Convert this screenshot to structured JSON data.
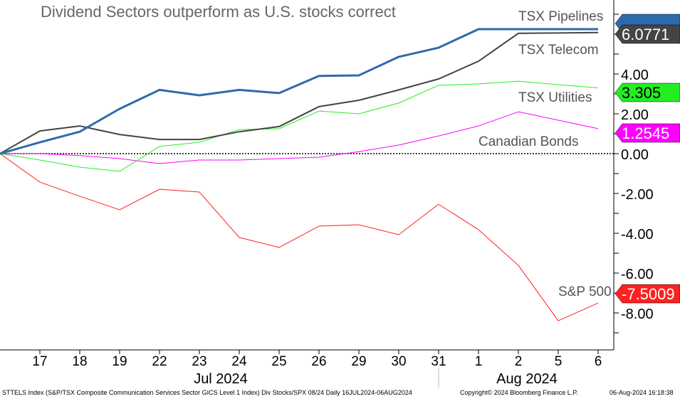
{
  "chart_data": {
    "type": "line",
    "title": "Dividend Sectors outperform as U.S. stocks correct",
    "x": [
      "16",
      "17",
      "18",
      "19",
      "22",
      "23",
      "24",
      "25",
      "26",
      "29",
      "30",
      "31",
      "1",
      "2",
      "5",
      "6"
    ],
    "x_tick_labels": [
      "17",
      "18",
      "19",
      "22",
      "23",
      "24",
      "25",
      "26",
      "29",
      "30",
      "31",
      "1",
      "2",
      "5",
      "6"
    ],
    "month_labels": [
      "Jul 2024",
      "Aug 2024"
    ],
    "ylim": [
      -9.86,
      7.71
    ],
    "y_ticks": [
      "4.00",
      "2.00",
      "0.00",
      "-2.00",
      "-4.00",
      "-6.00",
      "-8.00"
    ],
    "y_tick_values": [
      4,
      2,
      0,
      -2,
      -4,
      -6,
      -8
    ],
    "series": [
      {
        "name": "TSX Pipelines",
        "color": "#2e6aad",
        "width": 3,
        "values": [
          0,
          0.57,
          1.1,
          2.25,
          3.2,
          2.93,
          3.2,
          3.04,
          3.9,
          3.93,
          4.86,
          5.32,
          6.25,
          6.25,
          6.25,
          6.25
        ],
        "last_label": null,
        "label_text": "#fff"
      },
      {
        "name": "TSX Telecom",
        "color": "#444444",
        "width": 2,
        "values": [
          0,
          1.14,
          1.39,
          0.96,
          0.71,
          0.71,
          1.1,
          1.36,
          2.36,
          2.68,
          3.2,
          3.75,
          4.64,
          6.04,
          6.06,
          6.08
        ],
        "last_label": "6.0771",
        "label_text": "#fff"
      },
      {
        "name": "TSX Utilities",
        "color": "#22ee22",
        "width": 1,
        "values": [
          0,
          -0.32,
          -0.68,
          -0.89,
          0.36,
          0.57,
          1.21,
          1.25,
          2.14,
          2.0,
          2.54,
          3.43,
          3.5,
          3.64,
          3.46,
          3.305
        ],
        "last_label": "3.305",
        "label_text": "#000"
      },
      {
        "name": "Canadian Bonds",
        "color": "#ff00ff",
        "width": 1,
        "values": [
          0,
          0,
          -0.1,
          -0.25,
          -0.5,
          -0.32,
          -0.32,
          -0.25,
          -0.18,
          0.1,
          0.43,
          0.89,
          1.39,
          2.1,
          1.68,
          1.2545
        ],
        "last_label": "1.2545",
        "label_text": "#fff"
      },
      {
        "name": "S&P 500",
        "color": "#ff2020",
        "width": 1,
        "values": [
          0,
          -1.43,
          -2.14,
          -2.82,
          -1.79,
          -1.93,
          -4.21,
          -4.71,
          -3.64,
          -3.57,
          -4.07,
          -2.54,
          -3.82,
          -5.61,
          -8.39,
          -7.5009
        ],
        "last_label": "-7.5009",
        "label_text": "#fff"
      }
    ],
    "annotations": [
      "TSX Pipelines",
      "TSX Telecom",
      "TSX Utilities",
      "Canadian Bonds",
      "S&P 500"
    ]
  },
  "footer": {
    "left": "STTELS Index (S&P/TSX Composite Communication Services Sector GICS Level 1 Index) Div Stocks/SPX 08/24  Daily 16JUL2024-06AUG2024",
    "middle": "Copyright© 2024 Bloomberg Finance L.P.",
    "right": "06-Aug-2024 16:18:38"
  }
}
